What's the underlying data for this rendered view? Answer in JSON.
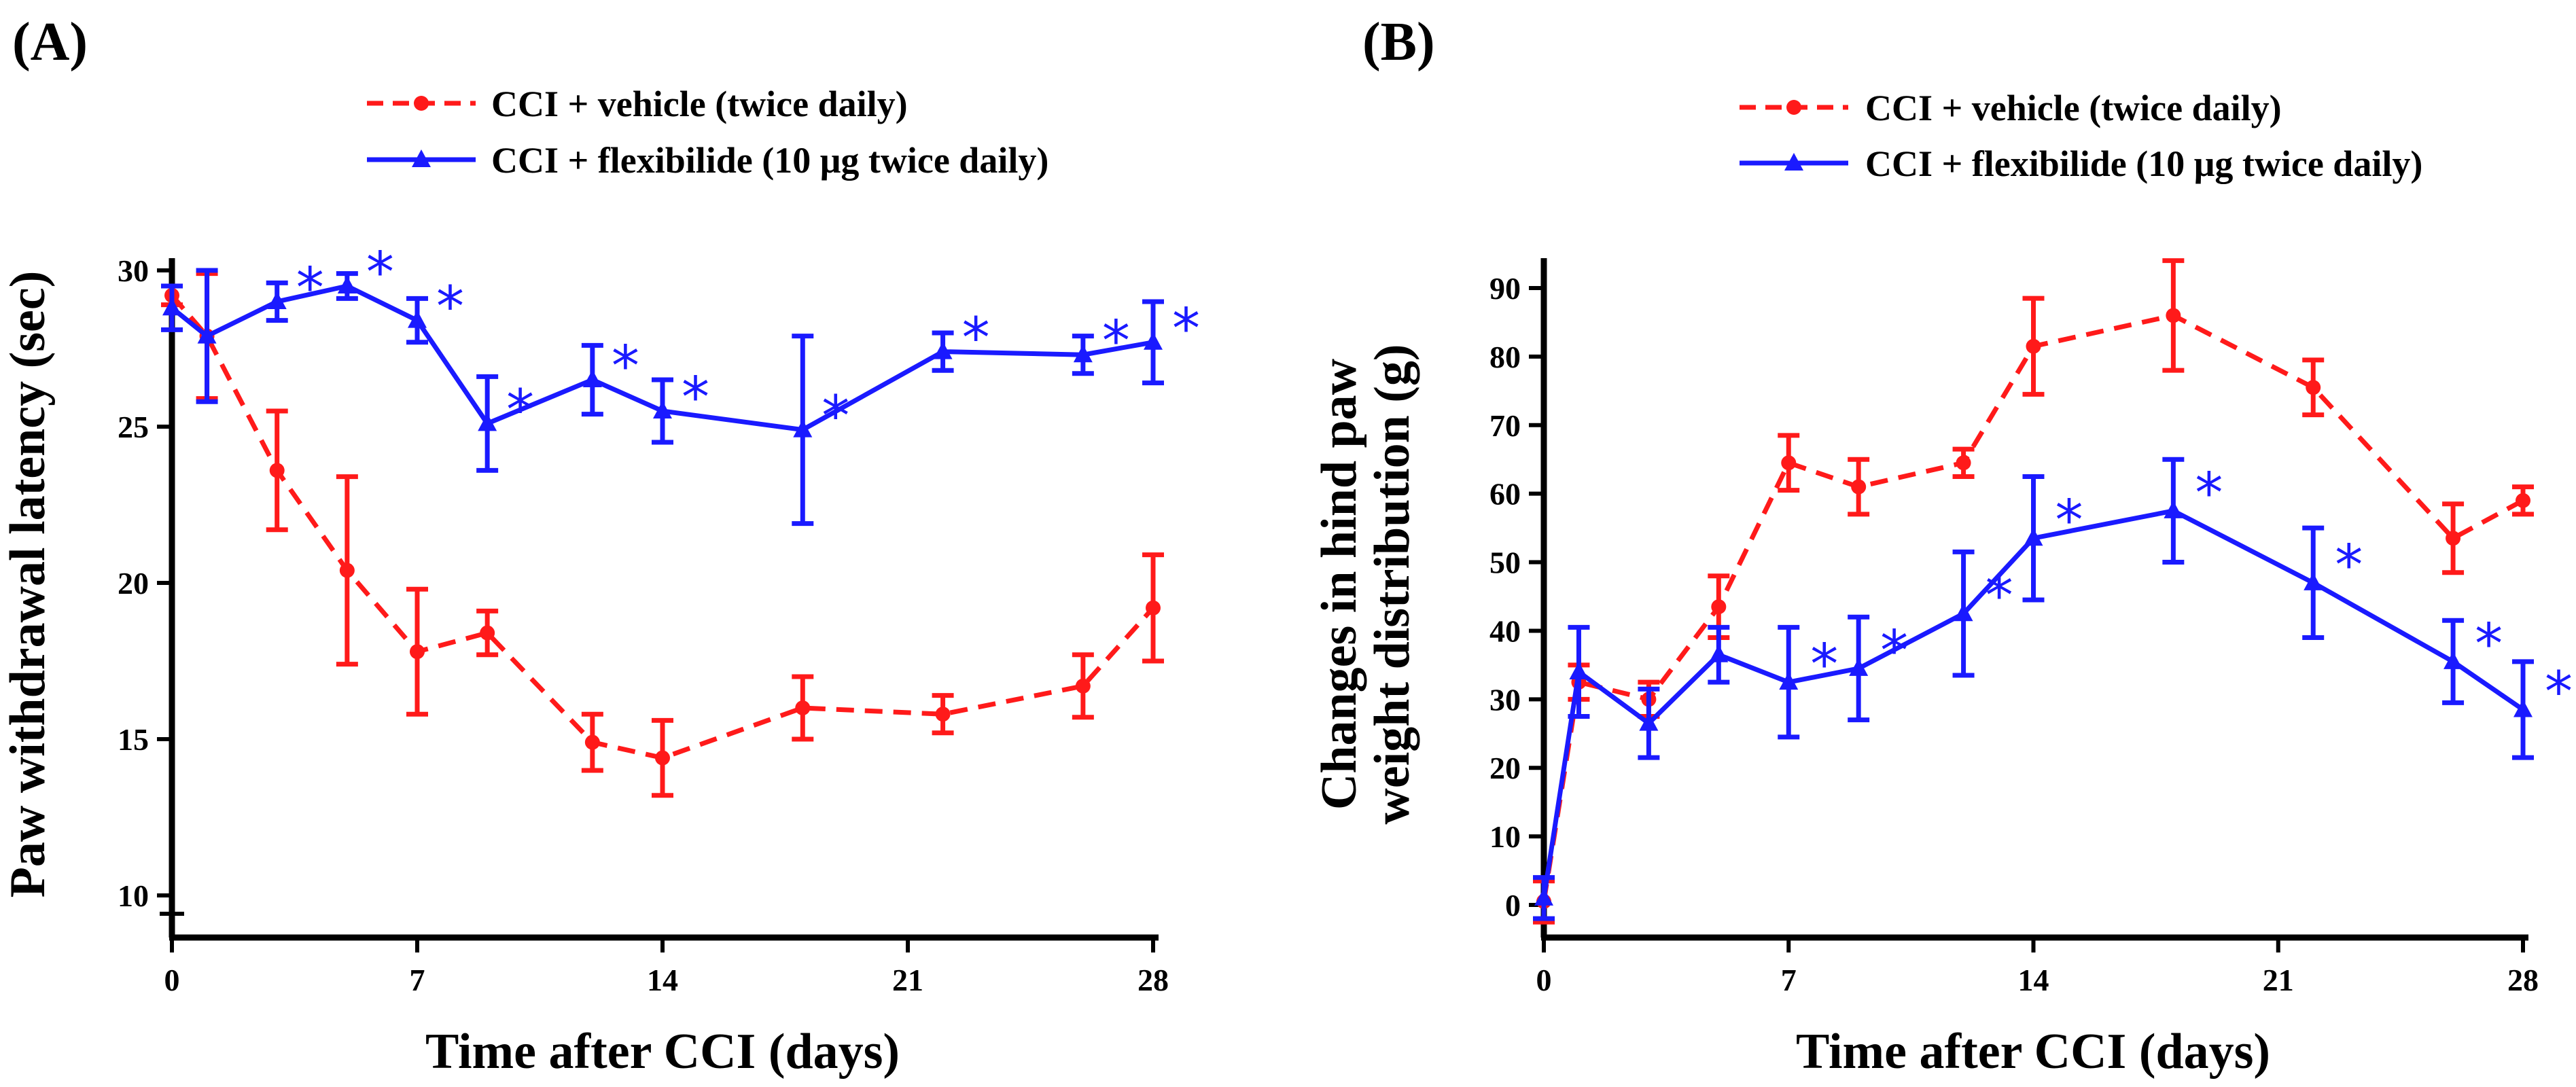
{
  "chart_data": [
    {
      "type": "line",
      "panel_label": "(A)",
      "title": "",
      "xlabel": "Time after CCI (days)",
      "ylabel": "Paw withdrawal latency (sec)",
      "xlim": [
        0,
        28
      ],
      "ylim": [
        10,
        30
      ],
      "xticks": [
        0,
        7,
        14,
        21,
        28
      ],
      "yticks": [
        10,
        15,
        20,
        25,
        30
      ],
      "x_tick_labels": [
        "0",
        "7",
        "14",
        "21",
        "28"
      ],
      "y_tick_labels": [
        "10",
        "15",
        "20",
        "25",
        "30"
      ],
      "legend": [
        "CCI + vehicle (twice daily)",
        "CCI + flexibilide (10 μg twice daily)"
      ],
      "legend_position": "top",
      "grid": false,
      "series": [
        {
          "name": "CCI + vehicle (twice daily)",
          "color": "#ff1a1a",
          "line_style": "dashed",
          "marker": "circle",
          "x": [
            0,
            1,
            3,
            5,
            7,
            9,
            12,
            14,
            18,
            22,
            26,
            28
          ],
          "y": [
            29.2,
            27.9,
            23.6,
            20.4,
            17.8,
            18.4,
            14.9,
            14.4,
            16.0,
            15.8,
            16.7,
            19.2
          ],
          "error": [
            0.3,
            2.0,
            1.9,
            3.0,
            2.0,
            0.7,
            0.9,
            1.2,
            1.0,
            0.6,
            1.0,
            1.7
          ]
        },
        {
          "name": "CCI + flexibilide (10 μg twice daily)",
          "color": "#1a1aff",
          "line_style": "solid",
          "marker": "triangle",
          "x": [
            0,
            1,
            3,
            5,
            7,
            9,
            12,
            14,
            18,
            22,
            26,
            28
          ],
          "y": [
            28.8,
            27.9,
            29.0,
            29.5,
            28.4,
            25.1,
            26.5,
            25.5,
            24.9,
            27.4,
            27.3,
            27.7
          ],
          "error": [
            0.7,
            2.1,
            0.6,
            0.4,
            0.7,
            1.5,
            1.1,
            1.0,
            3.0,
            0.6,
            0.6,
            1.3
          ],
          "significant": [
            false,
            false,
            true,
            true,
            true,
            true,
            true,
            true,
            true,
            true,
            true,
            true
          ]
        }
      ],
      "significance_marker": "*"
    },
    {
      "type": "line",
      "panel_label": "(B)",
      "title": "",
      "xlabel": "Time after CCI (days)",
      "ylabel_lines": [
        "Changes in hind paw",
        "weight distribution (g)"
      ],
      "xlim": [
        0,
        28
      ],
      "ylim": [
        -5,
        95
      ],
      "xticks": [
        0,
        7,
        14,
        21,
        28
      ],
      "yticks": [
        0,
        10,
        20,
        30,
        40,
        50,
        60,
        70,
        80,
        90
      ],
      "x_tick_labels": [
        "0",
        "7",
        "14",
        "21",
        "28"
      ],
      "y_tick_labels": [
        "0",
        "10",
        "20",
        "30",
        "40",
        "50",
        "60",
        "70",
        "80",
        "90"
      ],
      "legend": [
        "CCI + vehicle (twice daily)",
        "CCI + flexibilide (10 μg twice daily)"
      ],
      "legend_position": "top",
      "grid": false,
      "series": [
        {
          "name": "CCI + vehicle (twice daily)",
          "color": "#ff1a1a",
          "line_style": "dashed",
          "marker": "circle",
          "x": [
            0,
            1,
            3,
            5,
            7,
            9,
            12,
            14,
            18,
            22,
            26,
            28
          ],
          "y": [
            0.5,
            32.5,
            30.0,
            43.5,
            64.5,
            61.0,
            64.5,
            81.5,
            86.0,
            75.5,
            53.5,
            59.0
          ],
          "error": [
            3.0,
            2.5,
            2.5,
            4.5,
            4.0,
            4.0,
            2.0,
            7.0,
            8.0,
            4.0,
            5.0,
            2.0
          ]
        },
        {
          "name": "CCI + flexibilide (10 μg twice daily)",
          "color": "#1a1aff",
          "line_style": "solid",
          "marker": "triangle",
          "x": [
            0,
            1,
            3,
            5,
            7,
            9,
            12,
            14,
            18,
            22,
            26,
            28
          ],
          "y": [
            1.0,
            34.0,
            26.5,
            36.5,
            32.5,
            34.5,
            42.5,
            53.5,
            57.5,
            47.0,
            35.5,
            28.5
          ],
          "error": [
            3.0,
            6.5,
            5.0,
            4.0,
            8.0,
            7.5,
            9.0,
            9.0,
            7.5,
            8.0,
            6.0,
            7.0
          ],
          "significant": [
            false,
            false,
            false,
            false,
            true,
            true,
            true,
            true,
            true,
            true,
            true,
            true
          ]
        }
      ],
      "significance_marker": "*"
    }
  ]
}
